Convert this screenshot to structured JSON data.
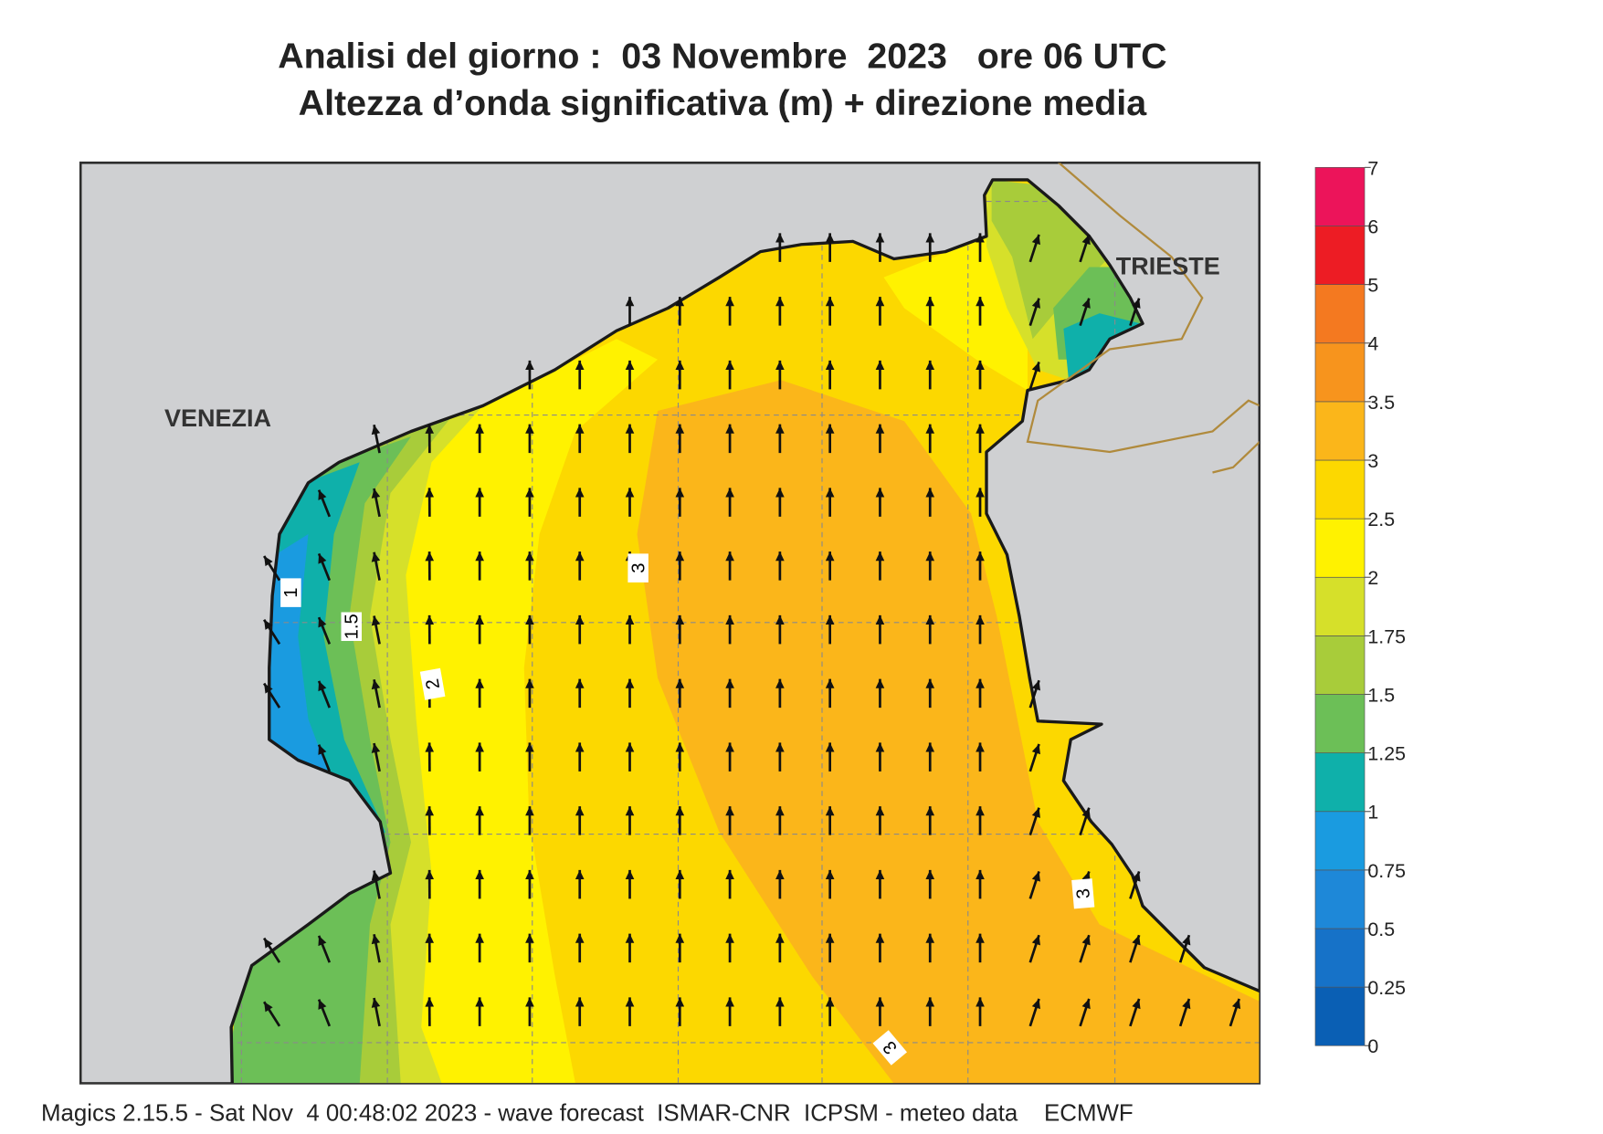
{
  "title": [
    "Analisi del giorno :  03 Novembre  2023   ore 06 UTC",
    "Altezza d’onda significativa (m) + direzione media"
  ],
  "places": [
    "VENEZIA",
    "TRIESTE"
  ],
  "contour_labels": [
    "1",
    "1.5",
    "2",
    "3",
    "3",
    "3"
  ],
  "colorbar": {
    "levels": [
      0,
      0.25,
      0.5,
      0.75,
      1,
      1.25,
      1.5,
      1.75,
      2,
      2.5,
      3,
      3.5,
      4,
      5,
      6,
      7
    ],
    "colors": [
      "#0a5fb4",
      "#1672c8",
      "#1e88d8",
      "#1a9be0",
      "#0fb0aa",
      "#6cbf57",
      "#a8cc3a",
      "#d6e02a",
      "#fff200",
      "#fcd800",
      "#fbb61a",
      "#f7941d",
      "#f47920",
      "#ed1c24",
      "#ec145a"
    ]
  },
  "footer": "Magics 2.15.5 - Sat Nov  4 00:48:02 2023 - wave forecast  ISMAR-CNR  ICPSM - meteo data    ECMWF"
}
